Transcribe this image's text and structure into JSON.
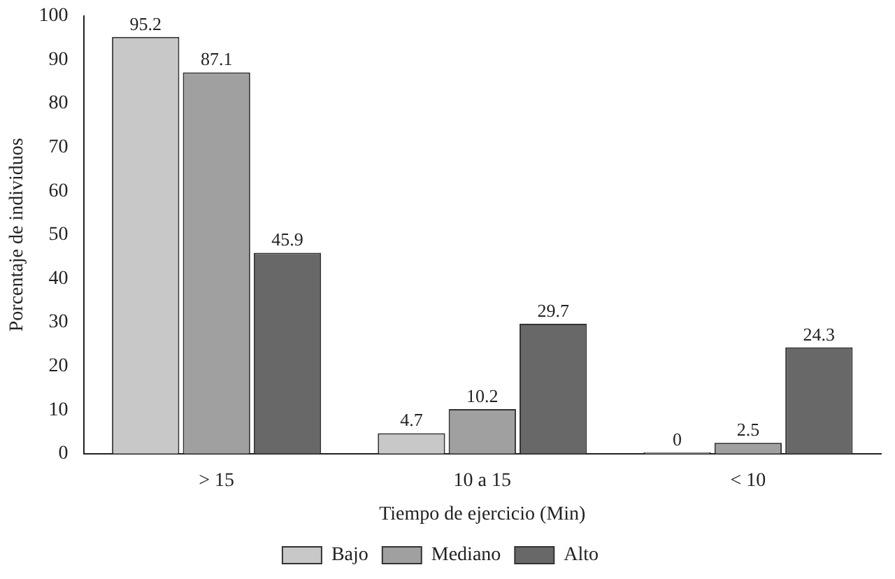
{
  "chart_data": {
    "type": "bar",
    "xlabel": "Tiempo de ejercicio (Min)",
    "ylabel": "Porcentaje de individuos",
    "categories": [
      "> 15",
      "10 a 15",
      "< 10"
    ],
    "series": [
      {
        "name": "Bajo",
        "color": "#c8c8c8",
        "values": [
          95.2,
          4.7,
          0
        ]
      },
      {
        "name": "Mediano",
        "color": "#a0a0a0",
        "values": [
          87.1,
          10.2,
          2.5
        ]
      },
      {
        "name": "Alto",
        "color": "#686868",
        "values": [
          45.9,
          29.7,
          24.3
        ]
      }
    ],
    "ylim": [
      0,
      100
    ],
    "yticks": [
      0,
      10,
      20,
      30,
      40,
      50,
      60,
      70,
      80,
      90,
      100
    ],
    "grid": false,
    "legend": "bottom",
    "data_labels": true
  }
}
